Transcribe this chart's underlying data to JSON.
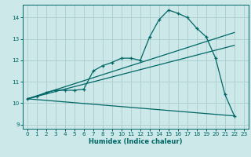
{
  "background_color": "#cce8e8",
  "grid_color": "#aacccc",
  "line_color": "#006666",
  "xlabel": "Humidex (Indice chaleur)",
  "xlim": [
    -0.5,
    23.5
  ],
  "ylim": [
    8.8,
    14.6
  ],
  "yticks": [
    9,
    10,
    11,
    12,
    13,
    14
  ],
  "xticks": [
    0,
    1,
    2,
    3,
    4,
    5,
    6,
    7,
    8,
    9,
    10,
    11,
    12,
    13,
    14,
    15,
    16,
    17,
    18,
    19,
    20,
    21,
    22,
    23
  ],
  "main_series": {
    "x": [
      0,
      1,
      2,
      3,
      4,
      5,
      6,
      7,
      8,
      9,
      10,
      11,
      12,
      13,
      14,
      15,
      16,
      17,
      18,
      19,
      20,
      21,
      22
    ],
    "y": [
      10.2,
      10.3,
      10.5,
      10.6,
      10.6,
      10.6,
      10.65,
      11.5,
      11.75,
      11.9,
      12.1,
      12.1,
      12.0,
      13.1,
      13.9,
      14.35,
      14.2,
      14.0,
      13.5,
      13.1,
      12.1,
      10.4,
      9.4
    ]
  },
  "straight_lines": [
    {
      "x": [
        0,
        22
      ],
      "y": [
        10.2,
        13.3
      ]
    },
    {
      "x": [
        0,
        22
      ],
      "y": [
        10.2,
        12.7
      ]
    },
    {
      "x": [
        0,
        22
      ],
      "y": [
        10.2,
        9.4
      ]
    }
  ]
}
